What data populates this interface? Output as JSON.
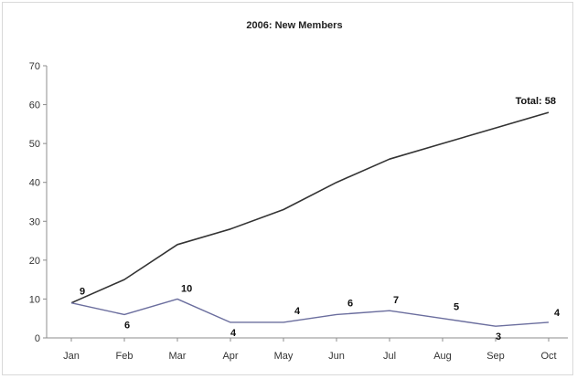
{
  "chart_data": {
    "type": "line",
    "title": "2006: New Members",
    "xlabel": "",
    "ylabel": "",
    "categories": [
      "Jan",
      "Feb",
      "Mar",
      "Apr",
      "May",
      "Jun",
      "Jul",
      "Aug",
      "Sep",
      "Oct"
    ],
    "ylim": [
      0,
      70
    ],
    "yticks": [
      0,
      10,
      20,
      30,
      40,
      50,
      60,
      70
    ],
    "grid": false,
    "legend": "none",
    "series": [
      {
        "values": [
          9,
          15,
          24,
          28,
          33,
          40,
          46,
          50,
          54,
          58
        ],
        "color": "#333333",
        "end_label": "Total: 58"
      },
      {
        "values": [
          9,
          6,
          10,
          4,
          4,
          6,
          7,
          5,
          3,
          4
        ],
        "color": "#6b6e9e",
        "data_labels": [
          "9",
          "6",
          "10",
          "4",
          "4",
          "6",
          "7",
          "5",
          "3",
          "4"
        ]
      }
    ]
  }
}
